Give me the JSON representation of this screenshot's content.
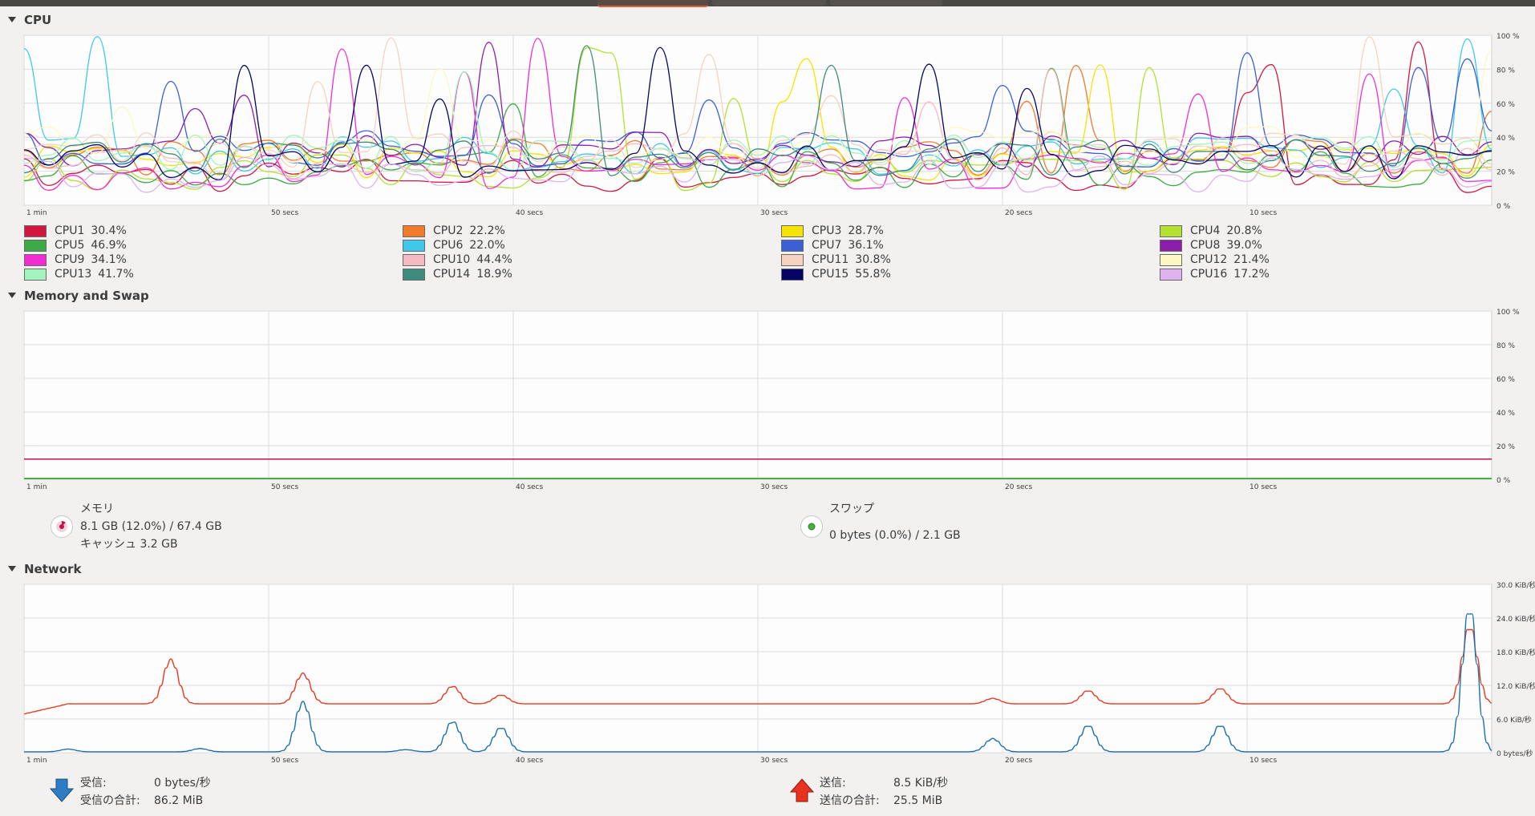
{
  "colors": {
    "cpu": [
      "#d3163f",
      "#f17a2b",
      "#f7e300",
      "#b3e12f",
      "#3cab45",
      "#40c7ec",
      "#3a5fd7",
      "#8a1eaa",
      "#f12cd3",
      "#f5b9c1",
      "#f6d2c0",
      "#fbf8c2",
      "#a1f5bc",
      "#3c8b7c",
      "#040563",
      "#deb3f0"
    ],
    "memory": "#c2134d",
    "swap": "#4cae3c",
    "received": "#1d70b0",
    "sent": "#e63b20"
  },
  "sections": {
    "cpu": "CPU",
    "memory": "Memory and Swap",
    "network": "Network"
  },
  "x_labels": [
    "1 min",
    "50 secs",
    "40 secs",
    "30 secs",
    "20 secs",
    "10 secs"
  ],
  "cpu": {
    "y_labels": [
      "100 %",
      "80 %",
      "60 %",
      "40 %",
      "20 %",
      "0 %"
    ],
    "legend": [
      {
        "name": "CPU1",
        "value": "30.4%"
      },
      {
        "name": "CPU2",
        "value": "22.2%"
      },
      {
        "name": "CPU3",
        "value": "28.7%"
      },
      {
        "name": "CPU4",
        "value": "20.8%"
      },
      {
        "name": "CPU5",
        "value": "46.9%"
      },
      {
        "name": "CPU6",
        "value": "22.0%"
      },
      {
        "name": "CPU7",
        "value": "36.1%"
      },
      {
        "name": "CPU8",
        "value": "39.0%"
      },
      {
        "name": "CPU9",
        "value": "34.1%"
      },
      {
        "name": "CPU10",
        "value": "44.4%"
      },
      {
        "name": "CPU11",
        "value": "30.8%"
      },
      {
        "name": "CPU12",
        "value": "21.4%"
      },
      {
        "name": "CPU13",
        "value": "41.7%"
      },
      {
        "name": "CPU14",
        "value": "18.9%"
      },
      {
        "name": "CPU15",
        "value": "55.8%"
      },
      {
        "name": "CPU16",
        "value": "17.2%"
      }
    ]
  },
  "memory": {
    "y_labels": [
      "100 %",
      "80 %",
      "60 %",
      "40 %",
      "20 %",
      "0 %"
    ],
    "memory_label": "メモリ",
    "memory_usage": "8.1 GB (12.0%) / 67.4 GB",
    "cache": "キャッシュ 3.2 GB",
    "memory_percent": 12.0,
    "swap_label": "スワップ",
    "swap_usage": "0 bytes (0.0%) / 2.1 GB",
    "swap_percent": 0.0
  },
  "network": {
    "y_labels": [
      "30.0 KiB/秒",
      "24.0 KiB/秒",
      "18.0 KiB/秒",
      "12.0 KiB/秒",
      "6.0 KiB/秒",
      "0 bytes/秒"
    ],
    "receiving_label": "受信:",
    "receiving_value": "0 bytes/秒",
    "total_received_label": "受信の合計:",
    "total_received_value": "86.2 MiB",
    "sending_label": "送信:",
    "sending_value": "8.5 KiB/秒",
    "total_sent_label": "送信の合計:",
    "total_sent_value": "25.5 MiB"
  }
}
